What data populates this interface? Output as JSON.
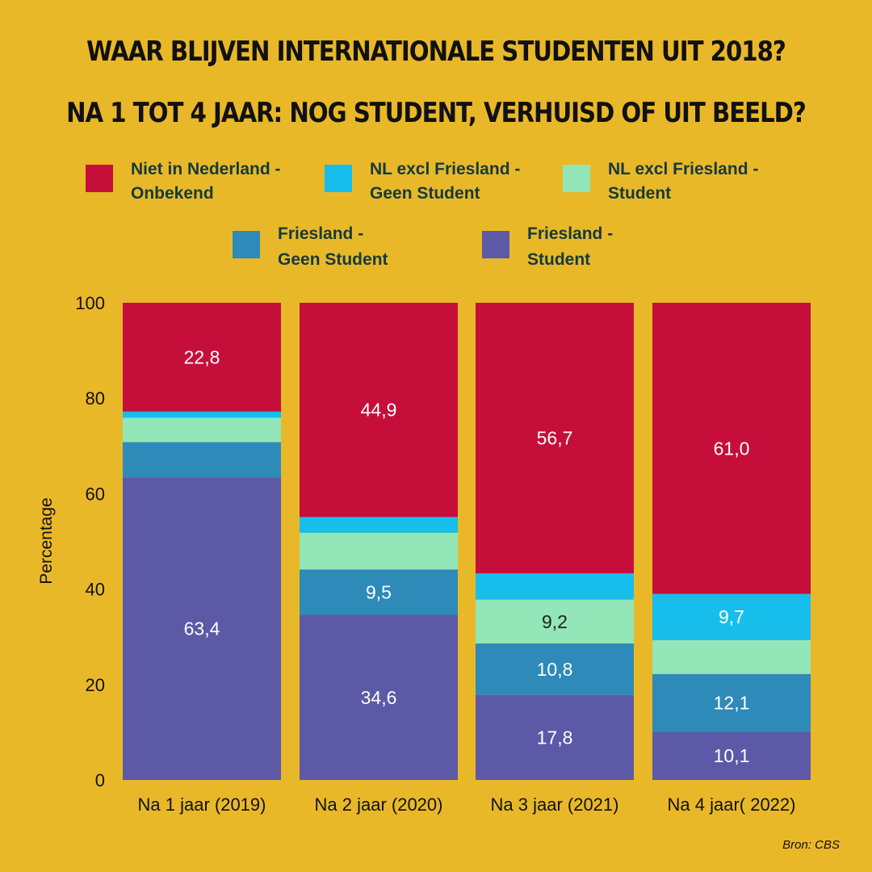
{
  "header": {
    "title_line1": "Waar blijven internationale studenten uit 2018?",
    "title_line2": "Na 1 tot 4 jaar: nog student, verhuisd of uit beeld?"
  },
  "legend": [
    {
      "line1": "Niet in Nederland -",
      "line2": "Onbekend",
      "color": "#C50F3A"
    },
    {
      "line1": "NL excl Friesland -",
      "line2": "Geen Student",
      "color": "#17BEEC"
    },
    {
      "line1": "NL excl Friesland -",
      "line2": "Student",
      "color": "#92E6B8"
    },
    {
      "line1": "Friesland -",
      "line2": "Geen Student",
      "color": "#2E8AB9"
    },
    {
      "line1": "Friesland -",
      "line2": "Student",
      "color": "#5C59A7"
    }
  ],
  "source": "Bron: CBS",
  "chart_data": {
    "type": "bar",
    "stacked": true,
    "ylabel": "Percentage",
    "ylim": [
      0,
      100
    ],
    "yticks": [
      0,
      20,
      40,
      60,
      80,
      100
    ],
    "categories": [
      "Na 1 jaar (2019)",
      "Na 2 jaar (2020)",
      "Na 3 jaar (2021)",
      "Na 4 jaar( 2022)"
    ],
    "series": [
      {
        "name": "Friesland - Student",
        "color": "#5C59A7",
        "values": [
          63.4,
          34.6,
          17.8,
          10.1
        ],
        "labels": [
          "63,4",
          "34,6",
          "17,8",
          "10,1"
        ]
      },
      {
        "name": "Friesland - Geen Student",
        "color": "#2E8AB9",
        "values": [
          7.4,
          9.5,
          10.8,
          12.1
        ],
        "labels": [
          "",
          "9,5",
          "10,8",
          "12,1"
        ]
      },
      {
        "name": "NL excl Friesland - Student",
        "color": "#92E6B8",
        "values": [
          5.1,
          7.7,
          9.2,
          7.1
        ],
        "labels": [
          "",
          "",
          "9,2",
          ""
        ]
      },
      {
        "name": "NL excl Friesland - Geen Student",
        "color": "#17BEEC",
        "values": [
          1.3,
          3.3,
          5.5,
          9.7
        ],
        "labels": [
          "",
          "",
          "",
          "9,7"
        ]
      },
      {
        "name": "Niet in Nederland - Onbekend",
        "color": "#C50F3A",
        "values": [
          22.8,
          44.9,
          56.7,
          61.0
        ],
        "labels": [
          "22,8",
          "44,9",
          "56,7",
          "61,0"
        ]
      }
    ]
  }
}
